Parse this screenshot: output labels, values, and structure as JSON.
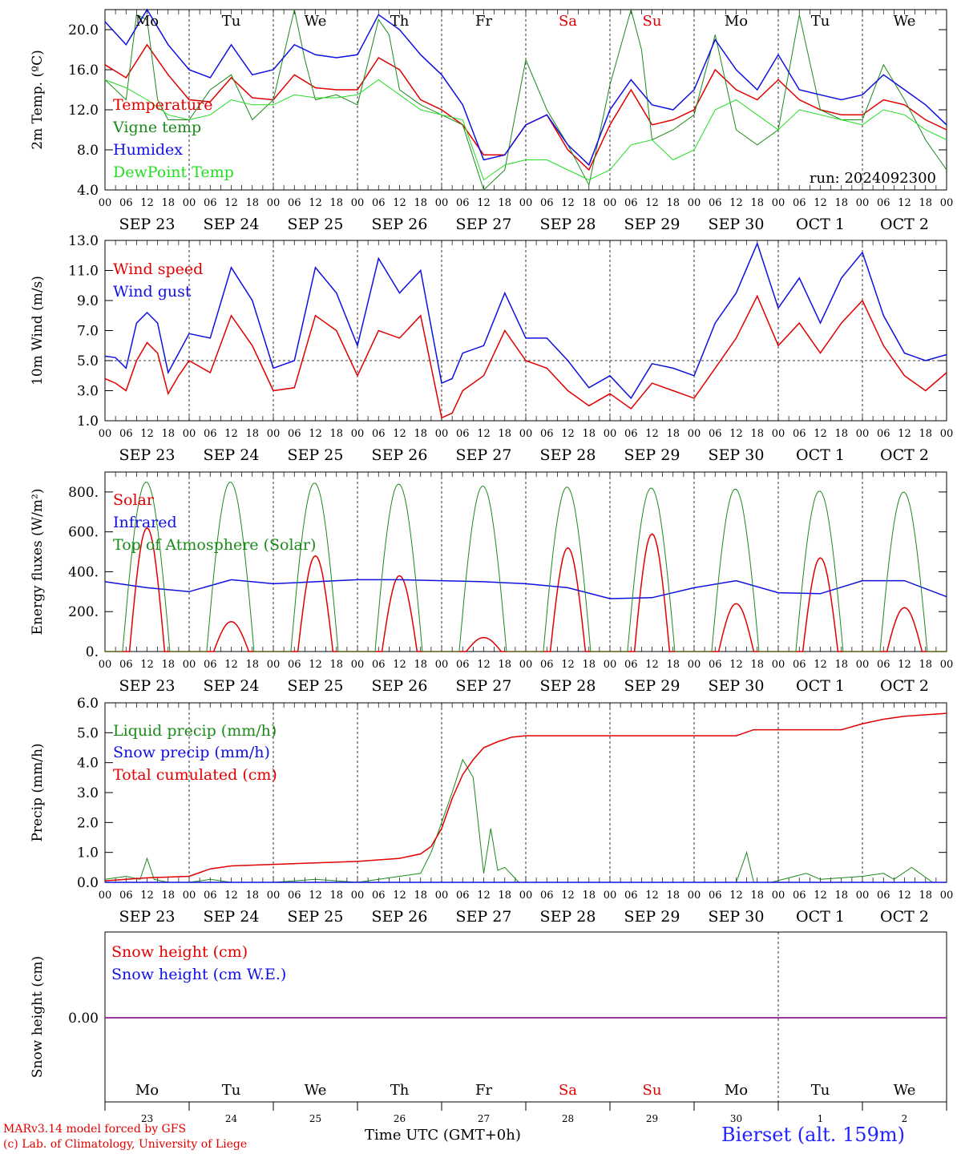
{
  "run_label": "run: 2024092300",
  "day_names": [
    "Mo",
    "Tu",
    "We",
    "Th",
    "Fr",
    "Sa",
    "Su",
    "Mo",
    "Tu",
    "We"
  ],
  "day_name_colors": [
    "#000000",
    "#000000",
    "#000000",
    "#000000",
    "#000000",
    "#e00000",
    "#e00000",
    "#000000",
    "#000000",
    "#000000"
  ],
  "date_labels": [
    "SEP 23",
    "SEP 24",
    "SEP 25",
    "SEP 26",
    "SEP 27",
    "SEP 28",
    "SEP 29",
    "SEP 30",
    "OCT  1",
    "OCT  2"
  ],
  "hour_ticks": [
    "00",
    "06",
    "12",
    "18"
  ],
  "last_hour_tick": "00",
  "snow_day_numbers": [
    "23",
    "24",
    "25",
    "26",
    "27",
    "28",
    "29",
    "30",
    "1",
    "2"
  ],
  "footer": {
    "model": "MARv3.14 model forced by GFS",
    "lab": "(c) Lab. of Climatology, University of Liege",
    "xlabel": "Time UTC (GMT+0h)",
    "station": "Bierset (alt. 159m)"
  },
  "colors": {
    "red": "#e00000",
    "green": "#1a8a1a",
    "blue": "#1010e0",
    "lightgreen": "#22dd22",
    "purple": "#8020a0"
  },
  "chart_data": [
    {
      "type": "line",
      "ylabel": "2m Temp. (ºC)",
      "ylim": [
        4,
        22
      ],
      "yticks": [
        "4.0",
        "8.0",
        "12.0",
        "16.0",
        "20.0"
      ],
      "ytick_values": [
        4,
        8,
        12,
        16,
        20
      ],
      "x_unit": "hours since SEP 23 00 UTC",
      "series": [
        {
          "name": "Temperature",
          "color": "red",
          "x": [
            0,
            6,
            12,
            18,
            24,
            30,
            36,
            42,
            48,
            54,
            60,
            66,
            72,
            78,
            84,
            90,
            96,
            102,
            108,
            114,
            120,
            126,
            132,
            138,
            144,
            150,
            156,
            162,
            168,
            174,
            180,
            186,
            192,
            198,
            204,
            210,
            216,
            222,
            228,
            234,
            240
          ],
          "y": [
            16.5,
            15.2,
            18.5,
            15.5,
            13.0,
            12.8,
            15.2,
            13.2,
            13.0,
            15.5,
            14.2,
            14.0,
            14.0,
            17.2,
            16.0,
            13.0,
            12.0,
            10.5,
            7.5,
            7.5,
            10.5,
            11.5,
            8.0,
            6.0,
            10.5,
            14.0,
            10.5,
            11.0,
            12.0,
            16.0,
            14.0,
            13.0,
            15.0,
            13.0,
            12.0,
            11.5,
            11.5,
            13.0,
            12.5,
            11.0,
            10.0
          ]
        },
        {
          "name": "Vigne temp",
          "color": "green",
          "x": [
            0,
            6,
            9,
            12,
            15,
            18,
            24,
            30,
            36,
            42,
            48,
            54,
            57,
            60,
            66,
            72,
            78,
            81,
            84,
            90,
            96,
            102,
            108,
            114,
            120,
            126,
            132,
            138,
            144,
            150,
            153,
            156,
            162,
            168,
            174,
            180,
            186,
            192,
            198,
            204,
            210,
            216,
            222,
            228,
            234,
            240
          ],
          "y": [
            15.0,
            13.0,
            21.5,
            21.0,
            13.0,
            11.0,
            11.0,
            14.0,
            15.5,
            11.0,
            13.0,
            22.0,
            17.0,
            13.0,
            13.5,
            12.5,
            21.0,
            19.5,
            14.0,
            12.5,
            11.5,
            10.5,
            4.0,
            6.0,
            17.0,
            12.0,
            8.5,
            4.5,
            14.5,
            22.0,
            18.0,
            9.0,
            10.0,
            11.5,
            19.5,
            10.0,
            8.5,
            10.0,
            21.5,
            12.0,
            11.0,
            11.0,
            16.5,
            13.0,
            9.0,
            6.0
          ]
        },
        {
          "name": "Humidex",
          "color": "blue",
          "x": [
            0,
            6,
            12,
            18,
            24,
            30,
            36,
            42,
            48,
            54,
            60,
            66,
            72,
            78,
            84,
            90,
            96,
            102,
            108,
            114,
            120,
            126,
            132,
            138,
            144,
            150,
            156,
            162,
            168,
            174,
            180,
            186,
            192,
            198,
            204,
            210,
            216,
            222,
            228,
            234,
            240
          ],
          "y": [
            20.8,
            18.5,
            22.0,
            18.5,
            16.0,
            15.2,
            18.5,
            15.5,
            16.0,
            18.5,
            17.5,
            17.2,
            17.5,
            21.5,
            20.0,
            17.5,
            15.5,
            12.5,
            7.0,
            7.5,
            10.5,
            11.5,
            8.5,
            6.5,
            12.0,
            15.0,
            12.5,
            12.0,
            14.0,
            19.0,
            16.0,
            14.0,
            17.5,
            14.0,
            13.5,
            13.0,
            13.5,
            15.5,
            14.0,
            12.5,
            10.5
          ]
        },
        {
          "name": "DewPoint Temp",
          "color": "lightgreen",
          "x": [
            0,
            6,
            12,
            18,
            24,
            30,
            36,
            42,
            48,
            54,
            60,
            66,
            72,
            78,
            84,
            90,
            96,
            102,
            108,
            114,
            120,
            126,
            132,
            138,
            144,
            150,
            156,
            162,
            168,
            174,
            180,
            186,
            192,
            198,
            204,
            210,
            216,
            222,
            228,
            234,
            240
          ],
          "y": [
            15.0,
            14.2,
            13.0,
            11.5,
            11.0,
            11.5,
            13.0,
            12.5,
            12.5,
            13.5,
            13.2,
            13.2,
            13.5,
            15.0,
            13.5,
            12.0,
            11.5,
            11.0,
            5.0,
            6.5,
            7.0,
            7.0,
            6.0,
            5.0,
            6.0,
            8.5,
            9.0,
            7.0,
            8.0,
            12.0,
            13.0,
            11.5,
            10.0,
            12.0,
            11.5,
            11.0,
            10.5,
            12.0,
            11.5,
            10.0,
            9.0
          ]
        }
      ]
    },
    {
      "type": "line",
      "ylabel": "10m Wind (m/s)",
      "ylim": [
        1,
        13
      ],
      "yticks": [
        "1.0",
        "3.0",
        "5.0",
        "7.0",
        "9.0",
        "11.0",
        "13.0"
      ],
      "ytick_values": [
        1,
        3,
        5,
        7,
        9,
        11,
        13
      ],
      "x_unit": "hours since SEP 23 00 UTC",
      "reference_line": 5.0,
      "series": [
        {
          "name": "Wind speed",
          "color": "red",
          "x": [
            0,
            3,
            6,
            9,
            12,
            15,
            18,
            21,
            24,
            30,
            36,
            42,
            48,
            54,
            60,
            66,
            72,
            78,
            84,
            90,
            96,
            99,
            102,
            108,
            114,
            120,
            126,
            132,
            138,
            144,
            150,
            156,
            162,
            168,
            174,
            180,
            186,
            192,
            198,
            204,
            210,
            216,
            222,
            228,
            234,
            240
          ],
          "y": [
            3.8,
            3.5,
            3.0,
            5.0,
            6.2,
            5.5,
            2.8,
            4.0,
            5.0,
            4.2,
            8.0,
            6.0,
            3.0,
            3.2,
            8.0,
            7.0,
            4.0,
            7.0,
            6.5,
            8.0,
            1.2,
            1.5,
            3.0,
            4.0,
            7.0,
            5.0,
            4.5,
            3.0,
            2.0,
            2.8,
            1.8,
            3.5,
            3.0,
            2.5,
            4.5,
            6.5,
            9.3,
            6.0,
            7.5,
            5.5,
            7.5,
            9.0,
            6.0,
            4.0,
            3.0,
            4.2
          ]
        },
        {
          "name": "Wind gust",
          "color": "blue",
          "x": [
            0,
            3,
            6,
            9,
            12,
            15,
            18,
            21,
            24,
            30,
            36,
            42,
            48,
            54,
            60,
            66,
            72,
            78,
            84,
            90,
            96,
            99,
            102,
            108,
            114,
            120,
            126,
            132,
            138,
            144,
            150,
            156,
            162,
            168,
            174,
            180,
            186,
            192,
            198,
            204,
            210,
            216,
            222,
            228,
            234,
            240
          ],
          "y": [
            5.3,
            5.2,
            4.5,
            7.5,
            8.2,
            7.5,
            4.2,
            5.5,
            6.8,
            6.5,
            11.2,
            9.0,
            4.5,
            5.0,
            11.2,
            9.5,
            6.0,
            11.8,
            9.5,
            11.0,
            3.5,
            3.8,
            5.5,
            6.0,
            9.5,
            6.5,
            6.5,
            5.0,
            3.2,
            4.0,
            2.5,
            4.8,
            4.5,
            4.0,
            7.5,
            9.5,
            12.8,
            8.5,
            10.5,
            7.5,
            10.5,
            12.2,
            8.0,
            5.5,
            5.0,
            5.4
          ]
        }
      ]
    },
    {
      "type": "line",
      "ylabel": "Energy fluxes (W/m²)",
      "ylim": [
        0,
        900
      ],
      "yticks": [
        "0.",
        "200.",
        "400.",
        "600.",
        "800."
      ],
      "ytick_values": [
        0,
        200,
        400,
        600,
        800
      ],
      "x_unit": "hours since SEP 23 00 UTC",
      "series": [
        {
          "name": "Solar",
          "color": "red",
          "daily_peaks": [
            620,
            150,
            480,
            380,
            70,
            520,
            590,
            240,
            470,
            220
          ]
        },
        {
          "name": "Infrared",
          "color": "blue",
          "x": [
            0,
            12,
            24,
            36,
            48,
            60,
            72,
            84,
            96,
            108,
            120,
            132,
            144,
            156,
            168,
            180,
            192,
            204,
            216,
            228,
            240
          ],
          "y": [
            350,
            320,
            300,
            360,
            340,
            350,
            360,
            360,
            355,
            350,
            340,
            320,
            265,
            270,
            320,
            355,
            295,
            290,
            355,
            355,
            275
          ]
        },
        {
          "name": "Top of Atmosphere (Solar)",
          "color": "green",
          "daily_peaks": [
            850,
            850,
            845,
            840,
            830,
            825,
            820,
            815,
            805,
            800
          ]
        }
      ]
    },
    {
      "type": "line",
      "ylabel": "Precip (mm/h)",
      "ylim": [
        0,
        6
      ],
      "yticks": [
        "0.0",
        "1.0",
        "2.0",
        "3.0",
        "4.0",
        "5.0",
        "6.0"
      ],
      "ytick_values": [
        0,
        1,
        2,
        3,
        4,
        5,
        6
      ],
      "x_unit": "hours since SEP 23 00 UTC",
      "series": [
        {
          "name": "Liquid precip (mm/h)",
          "color": "green",
          "x": [
            0,
            6,
            10,
            12,
            14,
            18,
            24,
            30,
            36,
            48,
            60,
            72,
            84,
            90,
            93,
            96,
            99,
            102,
            105,
            108,
            110,
            112,
            114,
            118,
            120,
            150,
            180,
            183,
            185,
            190,
            200,
            204,
            216,
            222,
            225,
            230,
            236,
            240
          ],
          "y": [
            0.1,
            0.2,
            0.1,
            0.8,
            0.1,
            0.0,
            0.0,
            0.1,
            0.0,
            0.0,
            0.1,
            0.0,
            0.2,
            0.3,
            1.0,
            2.0,
            3.0,
            4.1,
            3.5,
            0.3,
            1.8,
            0.4,
            0.5,
            0.0,
            0.0,
            0.0,
            0.0,
            1.0,
            0.0,
            0.0,
            0.3,
            0.1,
            0.2,
            0.3,
            0.1,
            0.5,
            0.0,
            0.0
          ]
        },
        {
          "name": "Snow precip (mm/h)",
          "color": "blue",
          "x": [
            0,
            240
          ],
          "y": [
            0,
            0
          ]
        },
        {
          "name": "Total cumulated (cm)",
          "color": "red",
          "x": [
            0,
            12,
            24,
            30,
            36,
            48,
            60,
            72,
            84,
            90,
            93,
            96,
            99,
            102,
            105,
            108,
            112,
            116,
            120,
            150,
            180,
            185,
            210,
            216,
            222,
            228,
            240
          ],
          "y": [
            0.05,
            0.15,
            0.2,
            0.45,
            0.55,
            0.6,
            0.65,
            0.7,
            0.8,
            0.95,
            1.2,
            1.8,
            2.8,
            3.6,
            4.1,
            4.5,
            4.7,
            4.85,
            4.9,
            4.9,
            4.9,
            5.1,
            5.1,
            5.3,
            5.45,
            5.55,
            5.65
          ]
        }
      ]
    },
    {
      "type": "line",
      "ylabel": "Snow height (cm)",
      "yticks": [
        "0.00"
      ],
      "ytick_values": [
        0
      ],
      "x_unit": "hours since SEP 23 00 UTC",
      "series": [
        {
          "name": "Snow height (cm)",
          "color": "red",
          "x": [
            0,
            240
          ],
          "y": [
            0,
            0
          ]
        },
        {
          "name": "Snow height (cm W.E.)",
          "color": "blue",
          "x": [
            0,
            240
          ],
          "y": [
            0,
            0
          ]
        }
      ]
    }
  ]
}
